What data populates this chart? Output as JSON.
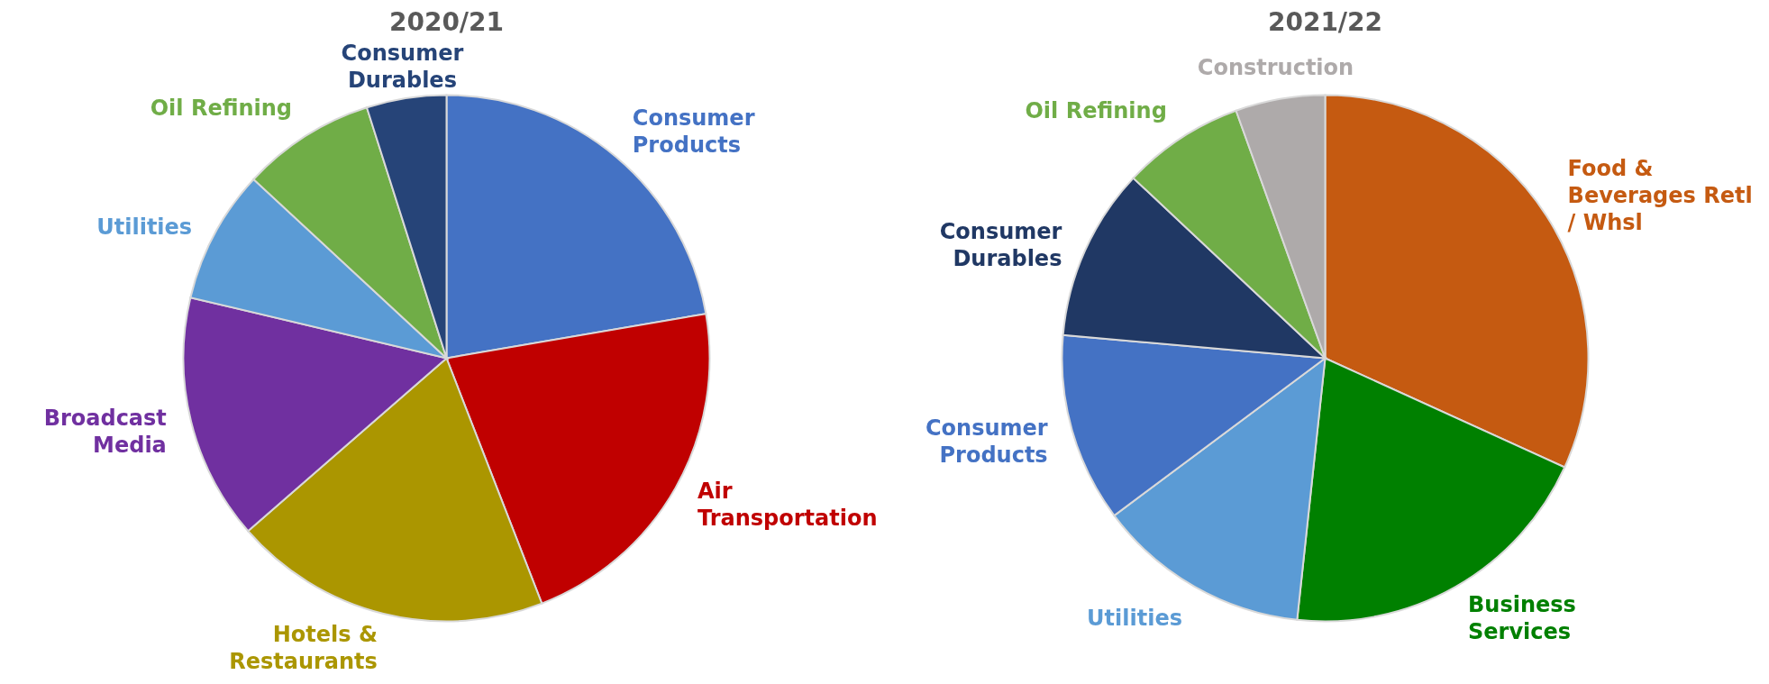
{
  "chart_data": [
    {
      "type": "pie",
      "title": "2020/21",
      "categories": [
        "Consumer Products",
        "Air Transportation",
        "Hotels & Restaurants",
        "Broadcast Media",
        "Utilities",
        "Oil Refining",
        "Consumer Durables"
      ],
      "values": [
        22.3,
        21.8,
        19.5,
        15.1,
        8.2,
        8.2,
        4.9
      ],
      "colors": [
        "#4472c4",
        "#c00000",
        "#ab9600",
        "#7030a0",
        "#5b9bd5",
        "#70ad47",
        "#264478"
      ],
      "legend": false
    },
    {
      "type": "pie",
      "title": "2021/22",
      "categories": [
        "Food & Beverages Retl / Whsl",
        "Business Services",
        "Utilities",
        "Consumer Products",
        "Consumer Durables",
        "Oil Refining",
        "Construction"
      ],
      "values": [
        31.8,
        19.9,
        13.1,
        11.6,
        10.6,
        7.5,
        5.5
      ],
      "colors": [
        "#c55a11",
        "#008000",
        "#5b9bd5",
        "#4472c4",
        "#203864",
        "#70ad47",
        "#aeaaaa"
      ],
      "legend": false
    }
  ]
}
